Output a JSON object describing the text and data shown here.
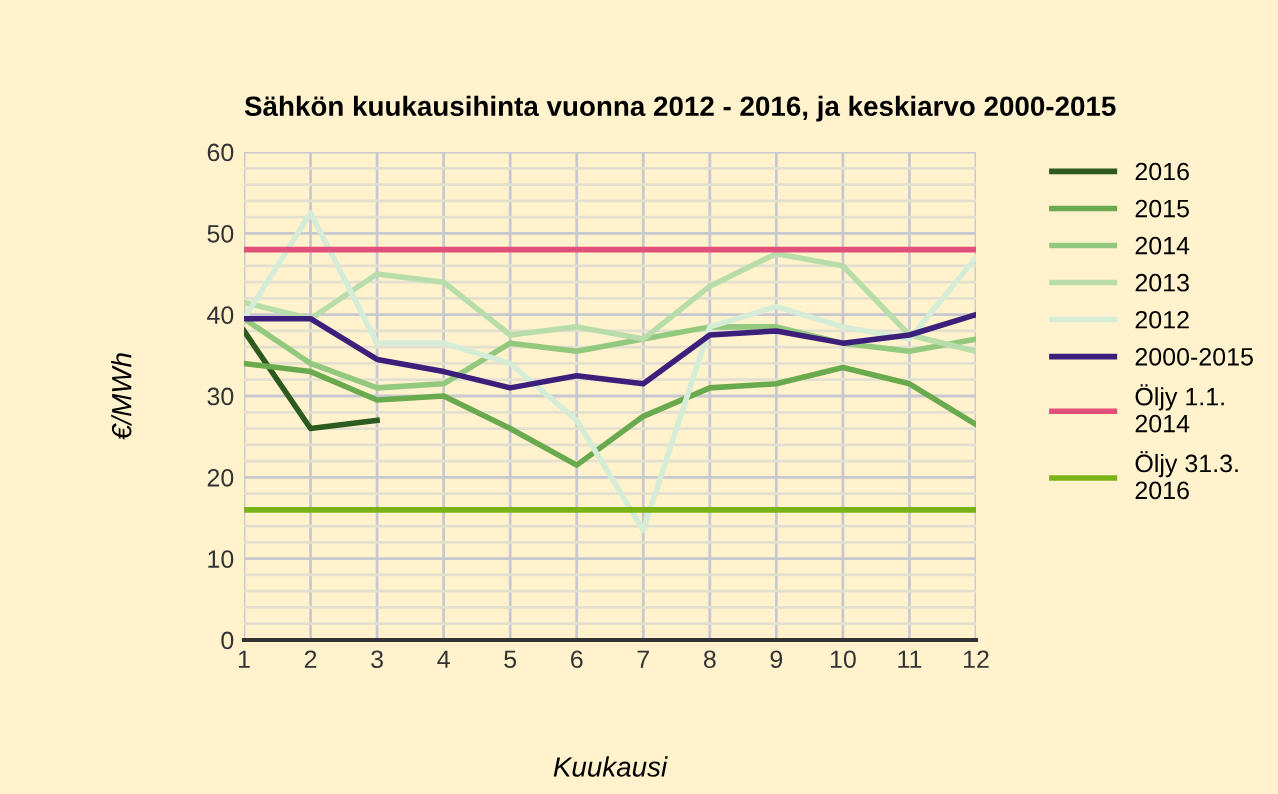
{
  "chart_data": {
    "type": "line",
    "title": "Sähkön kuukausihinta vuonna 2012 - 2016, ja keskiarvo 2000-2015",
    "xlabel": "Kuukausi",
    "ylabel": "€/MWh",
    "x": [
      1,
      2,
      3,
      4,
      5,
      6,
      7,
      8,
      9,
      10,
      11,
      12
    ],
    "series": [
      {
        "name": "2016",
        "color": "#2d5a1e",
        "values": [
          38,
          26,
          27,
          null,
          null,
          null,
          null,
          null,
          null,
          null,
          null,
          null
        ]
      },
      {
        "name": "2015",
        "color": "#6aaa4e",
        "values": [
          34,
          33,
          29.5,
          30,
          26,
          21.5,
          27.5,
          31,
          31.5,
          33.5,
          31.5,
          26.5
        ]
      },
      {
        "name": "2014",
        "color": "#93c97e",
        "values": [
          39.5,
          34,
          31,
          31.5,
          36.5,
          35.5,
          37,
          38.5,
          38.5,
          36.5,
          35.5,
          37
        ]
      },
      {
        "name": "2013",
        "color": "#b8dcaa",
        "values": [
          41.5,
          39.5,
          45,
          44,
          37.5,
          38.5,
          37,
          43.5,
          47.5,
          46,
          37.5,
          35.5
        ]
      },
      {
        "name": "2012",
        "color": "#d5ecd6",
        "values": [
          39.5,
          52.5,
          36.5,
          36.5,
          34,
          27,
          13.5,
          38.5,
          41,
          38.5,
          37,
          47
        ]
      },
      {
        "name": "2000-2015",
        "color": "#3b1f7a",
        "values": [
          39.5,
          39.5,
          34.5,
          33,
          31,
          32.5,
          31.5,
          37.5,
          38,
          36.5,
          37.5,
          40
        ]
      },
      {
        "name": "Öljy 1.1.\n2014",
        "color": "#e0507a",
        "values": [
          48,
          48,
          48,
          48,
          48,
          48,
          48,
          48,
          48,
          48,
          48,
          48
        ]
      },
      {
        "name": "Öljy 31.3.\n2016",
        "color": "#7ab317",
        "values": [
          16,
          16,
          16,
          16,
          16,
          16,
          16,
          16,
          16,
          16,
          16,
          16
        ]
      }
    ],
    "xlim": [
      1,
      12
    ],
    "xticks": [
      1,
      2,
      3,
      4,
      5,
      6,
      7,
      8,
      9,
      10,
      11,
      12
    ],
    "ylim": [
      0,
      60
    ],
    "yticks": [
      0,
      {
        "value": 2,
        "label": null
      },
      {
        "value": 4,
        "label": null
      },
      {
        "value": 6,
        "label": null
      },
      {
        "value": 8,
        "label": null
      },
      10,
      {
        "value": 12,
        "label": null
      },
      {
        "value": 14,
        "label": null
      },
      {
        "value": 18,
        "label": null
      },
      20,
      {
        "value": 22,
        "label": null
      },
      {
        "value": 24,
        "label": null
      },
      {
        "value": 26,
        "label": null
      },
      {
        "value": 28,
        "label": null
      },
      30,
      {
        "value": 32,
        "label": null
      },
      {
        "value": 34,
        "label": null
      },
      {
        "value": 36,
        "label": null
      },
      {
        "value": 38,
        "label": null
      },
      40,
      {
        "value": 42,
        "label": null
      },
      {
        "value": 44,
        "label": null
      },
      {
        "value": 46,
        "label": null
      },
      50,
      {
        "value": 52,
        "label": null
      },
      {
        "value": 54,
        "label": null
      },
      {
        "value": 56,
        "label": null
      },
      {
        "value": 58,
        "label": null
      },
      60
    ],
    "grid": true,
    "legend": "right",
    "marker": "none",
    "line_style": "solid"
  }
}
